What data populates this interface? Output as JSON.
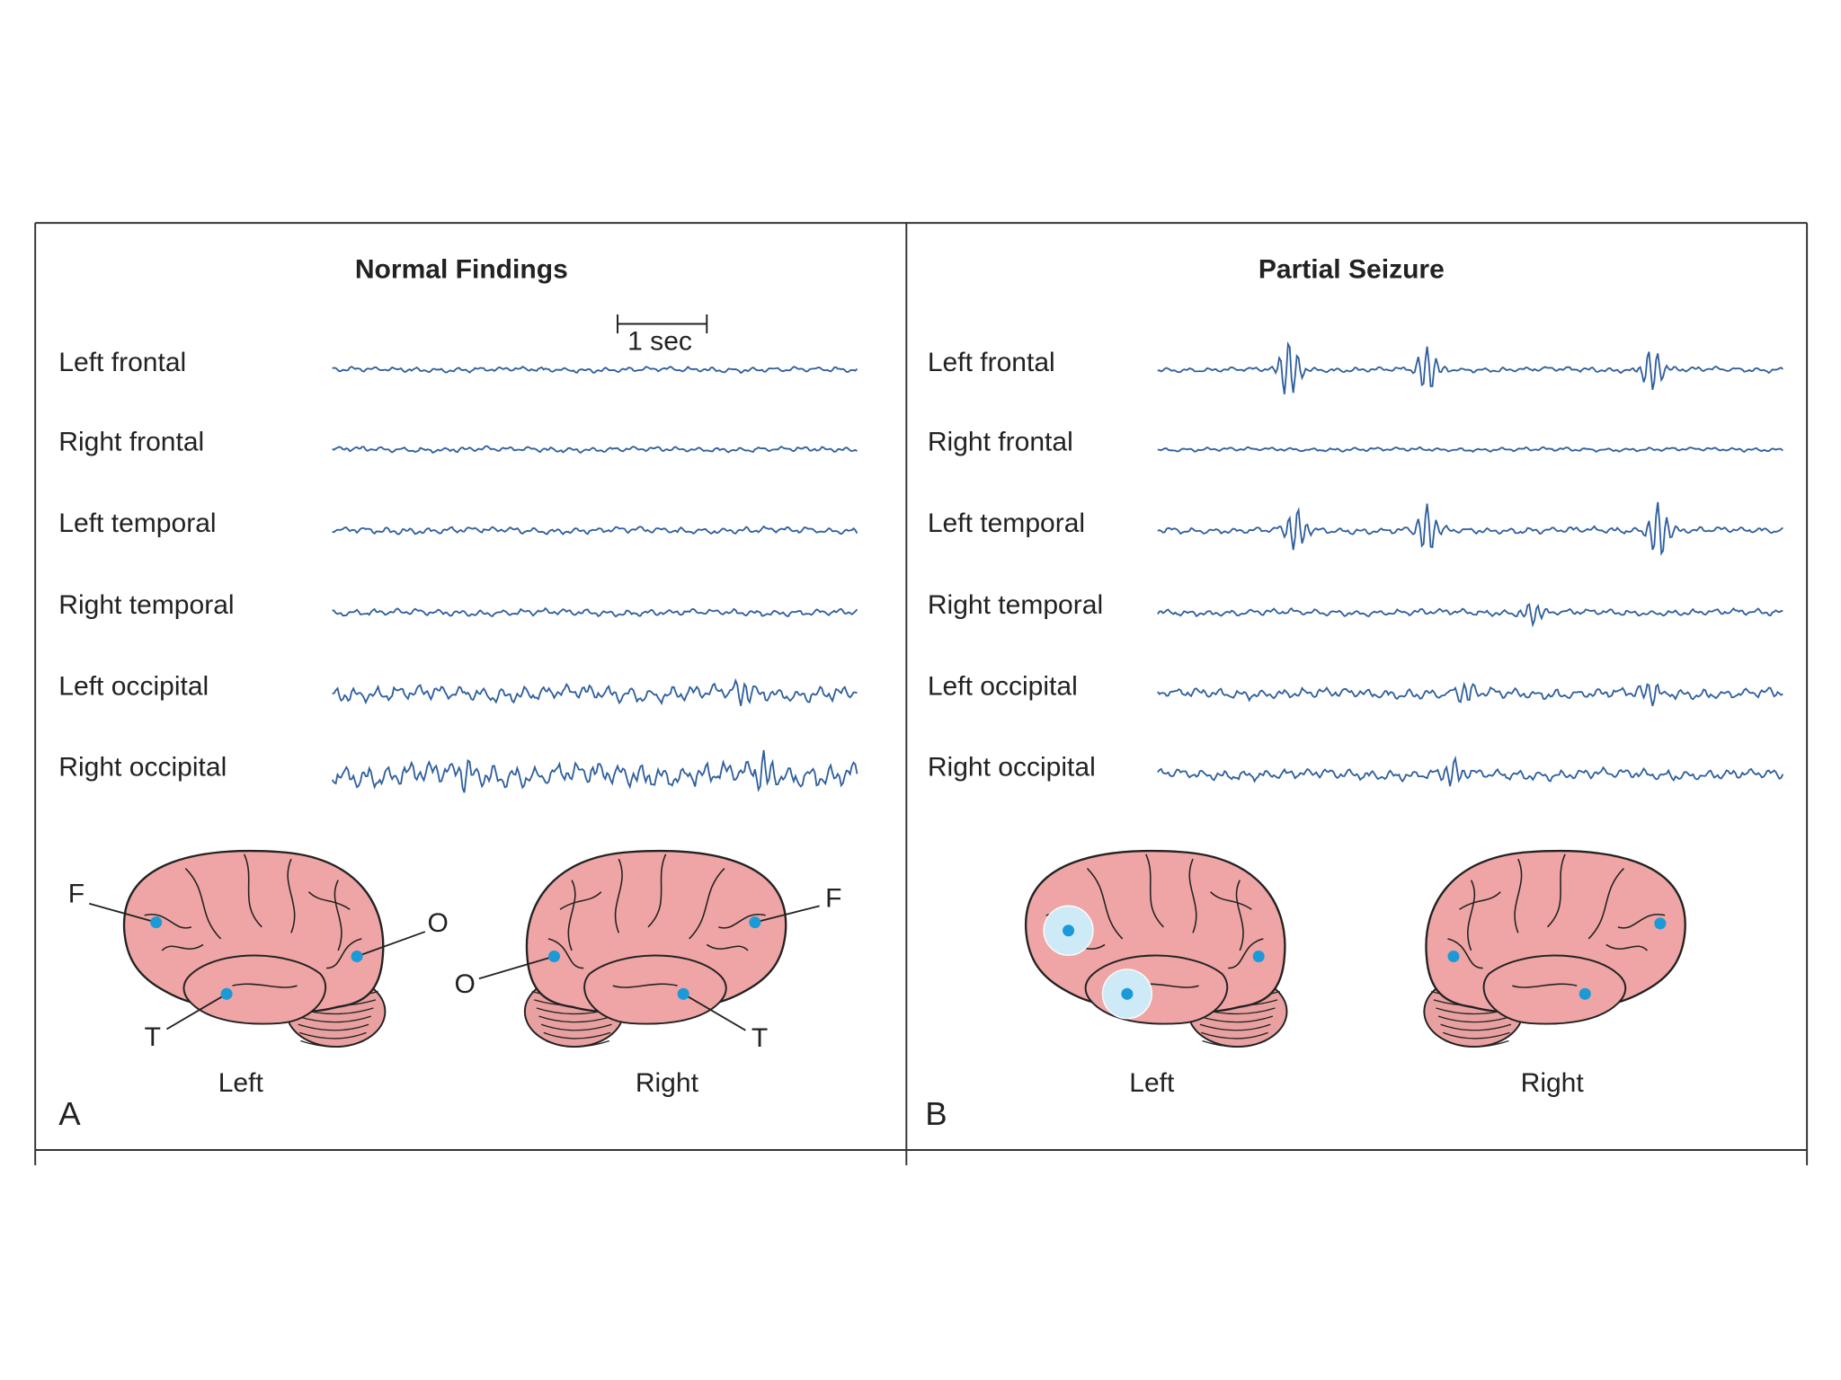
{
  "panels": [
    {
      "title": "Normal Findings",
      "letter": "A",
      "scale_label": "1 sec",
      "channels": [
        "Left frontal",
        "Right frontal",
        "Left temporal",
        "Right temporal",
        "Left occipital",
        "Right occipital"
      ],
      "brains": [
        {
          "caption": "Left",
          "labels": [
            "F",
            "O",
            "T"
          ]
        },
        {
          "caption": "Right",
          "labels": [
            "F",
            "O",
            "T"
          ]
        }
      ]
    },
    {
      "title": "Partial Seizure",
      "letter": "B",
      "channels": [
        "Left frontal",
        "Right frontal",
        "Left temporal",
        "Right temporal",
        "Left occipital",
        "Right occipital"
      ],
      "brains": [
        {
          "caption": "Left"
        },
        {
          "caption": "Right"
        }
      ]
    }
  ]
}
